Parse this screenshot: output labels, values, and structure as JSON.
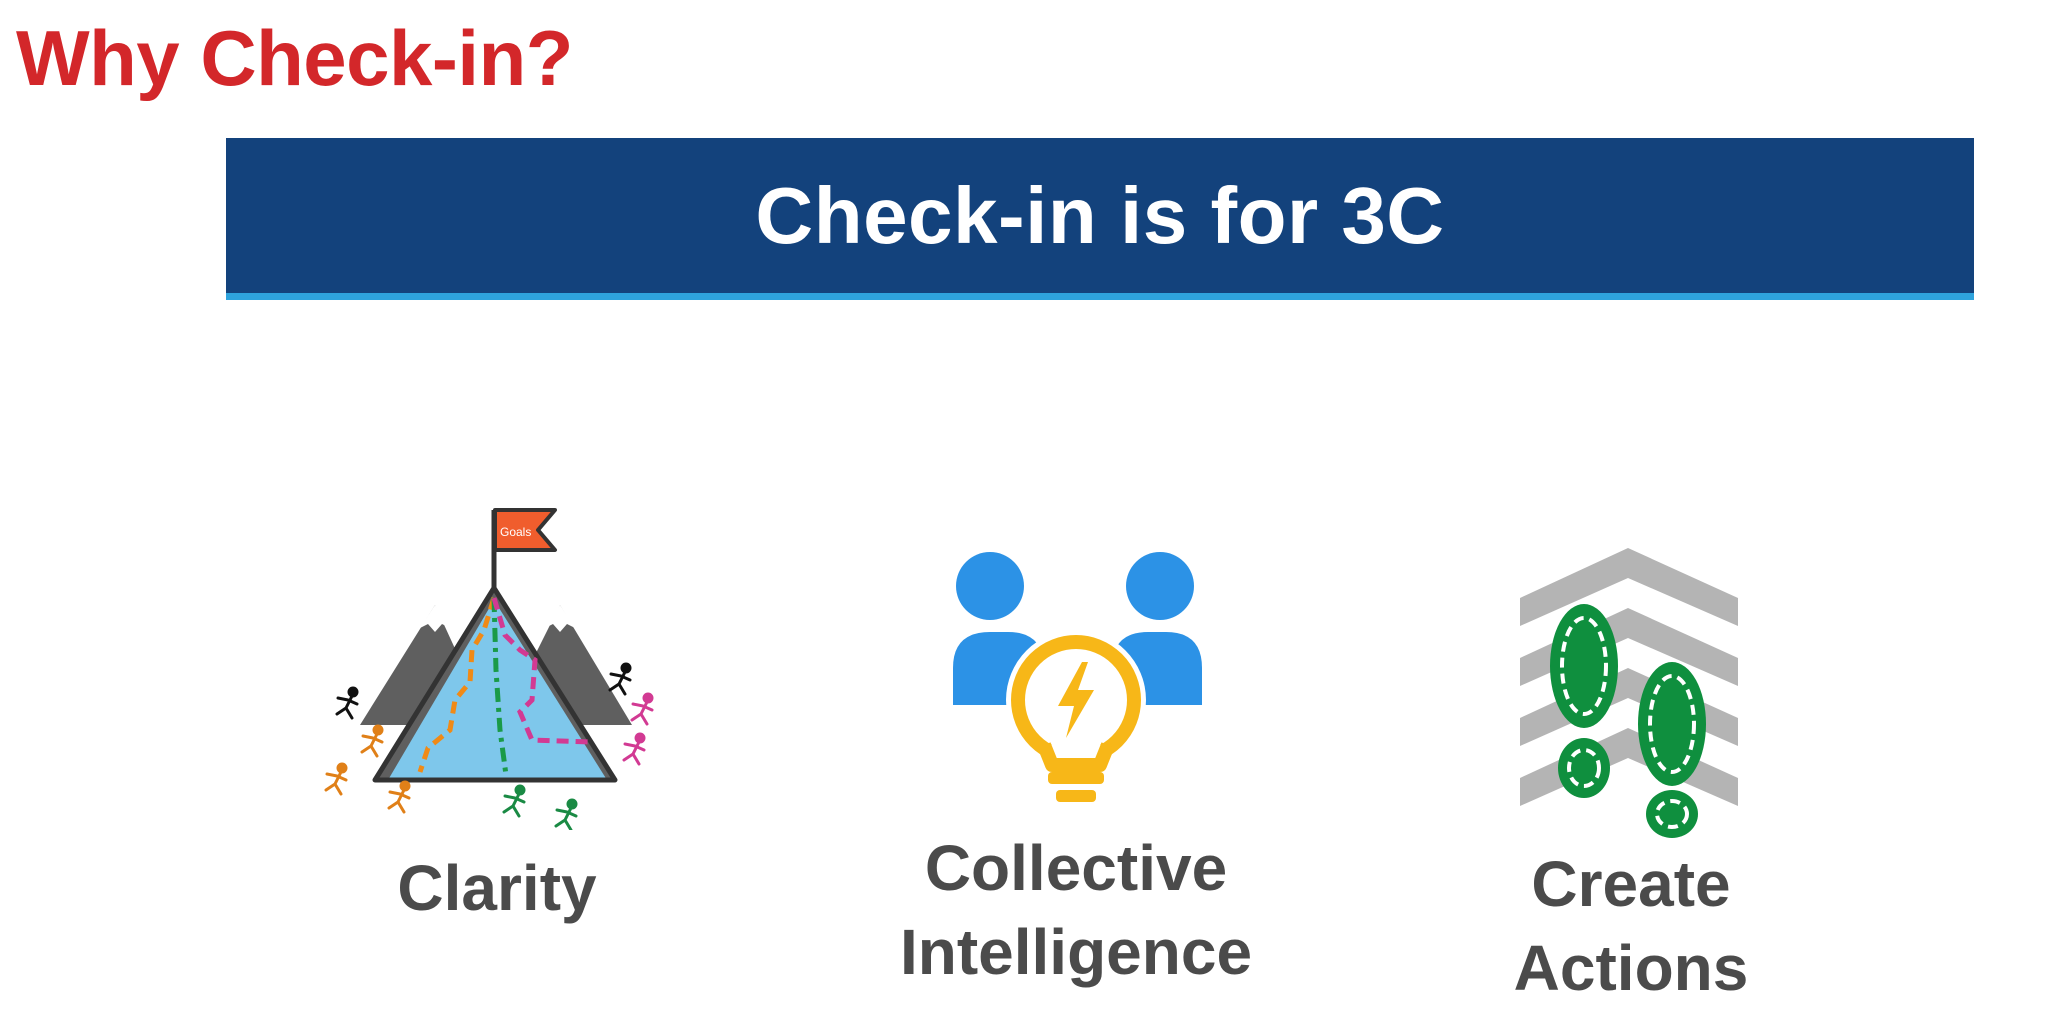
{
  "slide": {
    "title": "Why Check-in?",
    "banner_text": "Check-in is for 3C",
    "colors": {
      "title": "#d3272a",
      "banner_bg": "#13427c",
      "banner_underline": "#2ea3dd",
      "label_text": "#4b4b4b"
    }
  },
  "items": [
    {
      "icon": "mountain-goals-icon",
      "flag_label": "Goals",
      "label_line1": "Clarity",
      "label_line2": ""
    },
    {
      "icon": "people-lightbulb-icon",
      "label_line1": "Collective",
      "label_line2": "Intelligence"
    },
    {
      "icon": "footsteps-chevrons-icon",
      "label_line1": "Create",
      "label_line2": "Actions"
    }
  ]
}
